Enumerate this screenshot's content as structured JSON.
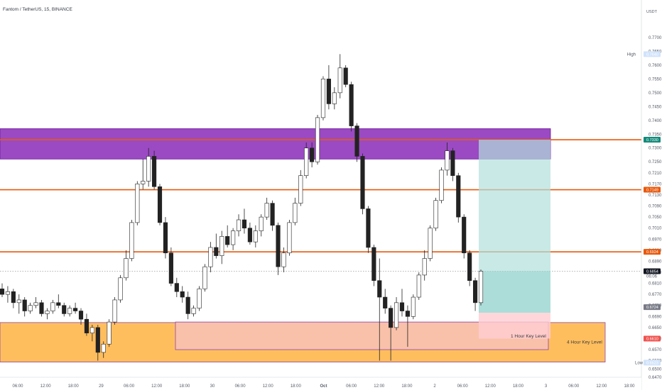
{
  "chart_data": {
    "type": "candlestick",
    "title": "Fantom / TetherUS, 15, BINANCE",
    "currency": "USDT",
    "ylim": [
      0.647,
      0.78
    ],
    "y_ticks": [
      "0.7700",
      "0.7650",
      "0.7600",
      "0.7550",
      "0.7500",
      "0.7450",
      "0.7400",
      "0.7350",
      "0.7300",
      "0.7250",
      "0.7210",
      "0.7170",
      "0.7130",
      "0.7090",
      "0.7050",
      "0.7010",
      "0.6970",
      "0.6930",
      "0.6890",
      "0.6850",
      "0.6810",
      "0.6770",
      "0.6730",
      "0.6690",
      "0.6650",
      "0.6610",
      "0.6570",
      "0.6530",
      "0.6500",
      "0.6470"
    ],
    "x_ticks": [
      "06:00",
      "12:00",
      "18:00",
      "29",
      "06:00",
      "12:00",
      "18:00",
      "30",
      "06:00",
      "12:00",
      "18:00",
      "Oct",
      "06:00",
      "12:00",
      "18:00",
      "2",
      "06:00",
      "12:00",
      "18:00",
      "3",
      "06:00",
      "12:00",
      "18:00"
    ],
    "high": {
      "label": "High",
      "value": "0.7640"
    },
    "low": {
      "label": "Low",
      "value": "0.6523"
    },
    "last_price": {
      "value": "0.6854",
      "countdown": "06:06"
    },
    "stop_label": "0.6724",
    "horizontal_levels": [
      {
        "price": 0.733,
        "label": "0.7330",
        "color": "#e8590c",
        "badge_color": "#138a7a"
      },
      {
        "price": 0.7149,
        "label": "0.7149",
        "color": "#e8590c",
        "badge_color": "#e8590c"
      },
      {
        "price": 0.6924,
        "label": "0.6924",
        "color": "#e8590c",
        "badge_color": "#e8590c"
      }
    ],
    "zones": [
      {
        "name": "supply-zone",
        "top": 0.737,
        "bottom": 0.726,
        "color": "#8a2ab8"
      },
      {
        "name": "4-hour-key-level",
        "label": "4 Hour Key Level",
        "top": 0.6668,
        "bottom": 0.6525,
        "color": "#ffb74d"
      },
      {
        "name": "1-hour-key-level",
        "label": "1 Hour Key Level",
        "top": 0.667,
        "bottom": 0.657,
        "color": "#f8c1b2"
      }
    ],
    "position": {
      "type": "long",
      "target": 0.733,
      "entry": 0.6854,
      "stop": 0.6724,
      "target_label": "0.7330",
      "entry_label": "0.6854",
      "stop_label": "0.6724",
      "stop_zone_label": "0.6610"
    },
    "colors": {
      "up": "#222222",
      "down": "#222222",
      "profit": "#b2dfdb",
      "loss": "#ffcdd2",
      "last_price_line": "#888888"
    },
    "candles": [
      [
        0.679,
        0.681,
        0.676,
        0.677
      ],
      [
        0.677,
        0.68,
        0.674,
        0.678
      ],
      [
        0.678,
        0.679,
        0.672,
        0.674
      ],
      [
        0.674,
        0.677,
        0.67,
        0.675
      ],
      [
        0.675,
        0.676,
        0.669,
        0.671
      ],
      [
        0.671,
        0.674,
        0.67,
        0.673
      ],
      [
        0.673,
        0.676,
        0.672,
        0.674
      ],
      [
        0.674,
        0.675,
        0.669,
        0.67
      ],
      [
        0.67,
        0.672,
        0.668,
        0.671
      ],
      [
        0.671,
        0.675,
        0.67,
        0.674
      ],
      [
        0.674,
        0.677,
        0.672,
        0.673
      ],
      [
        0.673,
        0.674,
        0.669,
        0.67
      ],
      [
        0.67,
        0.673,
        0.669,
        0.672
      ],
      [
        0.672,
        0.674,
        0.67,
        0.671
      ],
      [
        0.671,
        0.672,
        0.666,
        0.668
      ],
      [
        0.668,
        0.67,
        0.662,
        0.663
      ],
      [
        0.663,
        0.666,
        0.66,
        0.665
      ],
      [
        0.665,
        0.666,
        0.653,
        0.656
      ],
      [
        0.656,
        0.66,
        0.654,
        0.659
      ],
      [
        0.659,
        0.668,
        0.658,
        0.667
      ],
      [
        0.667,
        0.676,
        0.666,
        0.675
      ],
      [
        0.675,
        0.684,
        0.674,
        0.683
      ],
      [
        0.683,
        0.693,
        0.682,
        0.69
      ],
      [
        0.69,
        0.704,
        0.689,
        0.703
      ],
      [
        0.703,
        0.718,
        0.702,
        0.717
      ],
      [
        0.717,
        0.726,
        0.715,
        0.718
      ],
      [
        0.718,
        0.73,
        0.716,
        0.727
      ],
      [
        0.727,
        0.729,
        0.715,
        0.716
      ],
      [
        0.716,
        0.717,
        0.702,
        0.703
      ],
      [
        0.703,
        0.705,
        0.69,
        0.692
      ],
      [
        0.692,
        0.694,
        0.68,
        0.681
      ],
      [
        0.681,
        0.683,
        0.676,
        0.678
      ],
      [
        0.678,
        0.68,
        0.674,
        0.676
      ],
      [
        0.676,
        0.678,
        0.668,
        0.67
      ],
      [
        0.67,
        0.673,
        0.669,
        0.672
      ],
      [
        0.672,
        0.68,
        0.671,
        0.679
      ],
      [
        0.679,
        0.688,
        0.678,
        0.687
      ],
      [
        0.687,
        0.696,
        0.685,
        0.694
      ],
      [
        0.694,
        0.699,
        0.69,
        0.691
      ],
      [
        0.691,
        0.7,
        0.688,
        0.698
      ],
      [
        0.698,
        0.702,
        0.694,
        0.695
      ],
      [
        0.695,
        0.701,
        0.693,
        0.7
      ],
      [
        0.7,
        0.706,
        0.698,
        0.704
      ],
      [
        0.704,
        0.708,
        0.699,
        0.701
      ],
      [
        0.701,
        0.703,
        0.695,
        0.696
      ],
      [
        0.696,
        0.702,
        0.694,
        0.7
      ],
      [
        0.7,
        0.706,
        0.698,
        0.705
      ],
      [
        0.705,
        0.712,
        0.704,
        0.71
      ],
      [
        0.71,
        0.711,
        0.7,
        0.702
      ],
      [
        0.702,
        0.703,
        0.684,
        0.687
      ],
      [
        0.687,
        0.694,
        0.685,
        0.692
      ],
      [
        0.692,
        0.704,
        0.691,
        0.703
      ],
      [
        0.703,
        0.712,
        0.702,
        0.71
      ],
      [
        0.71,
        0.722,
        0.709,
        0.72
      ],
      [
        0.72,
        0.732,
        0.719,
        0.73
      ],
      [
        0.73,
        0.732,
        0.723,
        0.725
      ],
      [
        0.725,
        0.742,
        0.724,
        0.741
      ],
      [
        0.741,
        0.756,
        0.74,
        0.755
      ],
      [
        0.755,
        0.76,
        0.744,
        0.746
      ],
      [
        0.746,
        0.752,
        0.744,
        0.75
      ],
      [
        0.75,
        0.764,
        0.748,
        0.759
      ],
      [
        0.759,
        0.76,
        0.752,
        0.753
      ],
      [
        0.753,
        0.754,
        0.736,
        0.738
      ],
      [
        0.738,
        0.739,
        0.725,
        0.727
      ],
      [
        0.727,
        0.728,
        0.706,
        0.708
      ],
      [
        0.708,
        0.709,
        0.692,
        0.694
      ],
      [
        0.694,
        0.695,
        0.68,
        0.682
      ],
      [
        0.682,
        0.69,
        0.653,
        0.676
      ],
      [
        0.676,
        0.679,
        0.67,
        0.672
      ],
      [
        0.672,
        0.673,
        0.653,
        0.665
      ],
      [
        0.665,
        0.676,
        0.664,
        0.674
      ],
      [
        0.674,
        0.679,
        0.669,
        0.671
      ],
      [
        0.671,
        0.673,
        0.658,
        0.669
      ],
      [
        0.669,
        0.677,
        0.668,
        0.676
      ],
      [
        0.676,
        0.685,
        0.675,
        0.684
      ],
      [
        0.684,
        0.693,
        0.682,
        0.69
      ],
      [
        0.69,
        0.702,
        0.689,
        0.701
      ],
      [
        0.701,
        0.712,
        0.7,
        0.711
      ],
      [
        0.711,
        0.723,
        0.71,
        0.722
      ],
      [
        0.722,
        0.732,
        0.72,
        0.729
      ],
      [
        0.729,
        0.73,
        0.718,
        0.72
      ],
      [
        0.72,
        0.721,
        0.703,
        0.705
      ],
      [
        0.705,
        0.706,
        0.69,
        0.692
      ],
      [
        0.692,
        0.693,
        0.68,
        0.682
      ],
      [
        0.682,
        0.683,
        0.671,
        0.674
      ],
      [
        0.674,
        0.686,
        0.673,
        0.6854
      ]
    ]
  }
}
